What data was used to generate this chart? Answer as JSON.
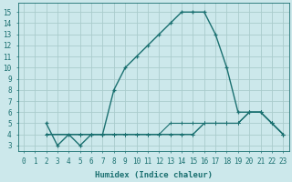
{
  "xlabel": "Humidex (Indice chaleur)",
  "bg_color": "#cce8eb",
  "grid_color": "#aacccc",
  "line_color": "#1a7070",
  "xlim": [
    -0.5,
    23.5
  ],
  "ylim": [
    2.5,
    15.8
  ],
  "xticks": [
    0,
    1,
    2,
    3,
    4,
    5,
    6,
    7,
    8,
    9,
    10,
    11,
    12,
    13,
    14,
    15,
    16,
    17,
    18,
    19,
    20,
    21,
    22,
    23
  ],
  "yticks": [
    3,
    4,
    5,
    6,
    7,
    8,
    9,
    10,
    11,
    12,
    13,
    14,
    15
  ],
  "line1_x": [
    2,
    3,
    4,
    5,
    6,
    7,
    8,
    9,
    10,
    11,
    12,
    13,
    14,
    15,
    16,
    17,
    18,
    19,
    20,
    21,
    22,
    23
  ],
  "line1_y": [
    5,
    3,
    4,
    3,
    4,
    4,
    8,
    10,
    11,
    12,
    13,
    14,
    15,
    15,
    15,
    13,
    10,
    6,
    6,
    6,
    5,
    4
  ],
  "line2_x": [
    2,
    5,
    6,
    7,
    8,
    9,
    10,
    11,
    12,
    13,
    14,
    15,
    16,
    17,
    18,
    19,
    20,
    21,
    22,
    23
  ],
  "line2_y": [
    4,
    4,
    4,
    4,
    4,
    4,
    4,
    4,
    4,
    4,
    4,
    4,
    5,
    5,
    5,
    5,
    6,
    6,
    5,
    4
  ],
  "line3_x": [
    2,
    5,
    6,
    7,
    8,
    9,
    10,
    11,
    12,
    13,
    14,
    15,
    16,
    17,
    18,
    19,
    20,
    21,
    22,
    23
  ],
  "line3_y": [
    4,
    4,
    4,
    4,
    4,
    4,
    4,
    4,
    4,
    4,
    4,
    4,
    5,
    5,
    5,
    5,
    6,
    6,
    5,
    4
  ],
  "line4_x": [
    2,
    5,
    6,
    7,
    8,
    9,
    10,
    11,
    12,
    13,
    14,
    15,
    16,
    17,
    18,
    19,
    20,
    21,
    22,
    23
  ],
  "line4_y": [
    4,
    4,
    4,
    4,
    4,
    4,
    4,
    4,
    4,
    5,
    5,
    5,
    5,
    5,
    5,
    5,
    6,
    6,
    5,
    4
  ]
}
